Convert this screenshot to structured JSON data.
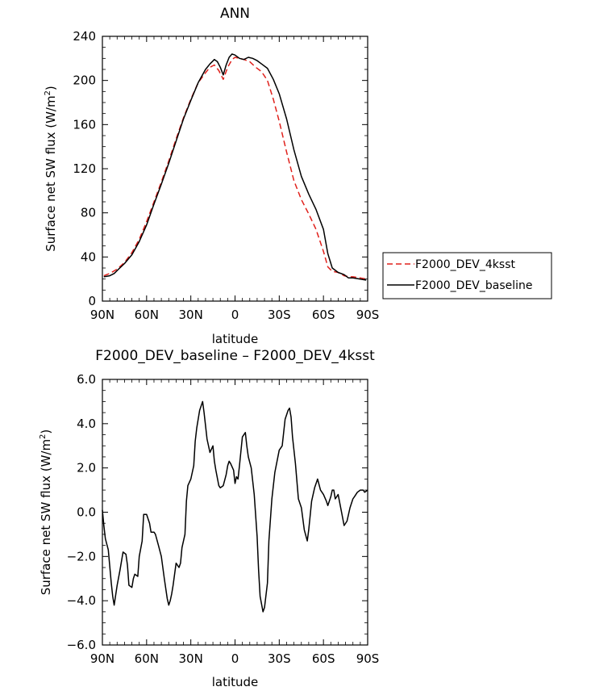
{
  "chart_data": [
    {
      "type": "line",
      "title": "ANN",
      "xlabel": "latitude",
      "ylabel": "Surface net SW flux (W/m",
      "ylabel_sup": "2",
      "ylabel_close": ")",
      "xlim": [
        90,
        -90
      ],
      "ylim": [
        0,
        240
      ],
      "x_ticks": [
        90,
        60,
        30,
        0,
        -30,
        -60,
        -90
      ],
      "x_tick_labels": [
        "90N",
        "60N",
        "30N",
        "0",
        "30S",
        "60S",
        "90S"
      ],
      "y_ticks": [
        0,
        40,
        80,
        120,
        160,
        200,
        240
      ],
      "y_tick_labels": [
        "0",
        "40",
        "80",
        "120",
        "160",
        "200",
        "240"
      ],
      "legend_position": "outside-right",
      "series": [
        {
          "name": "F2000_DEV_4ksst",
          "color": "#e0201b",
          "dash": "dashed",
          "x": [
            89,
            85,
            80,
            75,
            70,
            65,
            60,
            55,
            50,
            45,
            40,
            35,
            30,
            25,
            20,
            17,
            14,
            11,
            8,
            5,
            2,
            0,
            -3,
            -6,
            -10,
            -14,
            -18,
            -22,
            -26,
            -30,
            -35,
            -40,
            -45,
            -50,
            -55,
            -60,
            -63,
            -66,
            -70,
            -74,
            -78,
            -80,
            -85,
            -89
          ],
          "y": [
            23,
            25,
            29,
            35,
            44,
            56,
            72,
            90,
            108,
            127,
            147,
            166,
            183,
            198,
            207,
            212,
            214,
            209,
            201,
            212,
            219,
            221,
            220,
            219,
            217,
            212,
            208,
            200,
            183,
            163,
            135,
            109,
            92,
            79,
            65,
            45,
            31,
            27,
            26,
            23,
            22,
            22,
            21,
            20
          ]
        },
        {
          "name": "F2000_DEV_baseline",
          "color": "#000000",
          "dash": "solid",
          "x": [
            89,
            85,
            82,
            79,
            75,
            70,
            65,
            60,
            55,
            50,
            45,
            40,
            35,
            30,
            25,
            20,
            17,
            14,
            12,
            10,
            8,
            6,
            4,
            2,
            0,
            -3,
            -6,
            -9,
            -12,
            -15,
            -18,
            -22,
            -26,
            -30,
            -35,
            -40,
            -45,
            -50,
            -55,
            -60,
            -63,
            -66,
            -70,
            -74,
            -77,
            -80,
            -85,
            -89
          ],
          "y": [
            22,
            23,
            25,
            29,
            34,
            42,
            54,
            69,
            88,
            106,
            125,
            145,
            165,
            182,
            198,
            210,
            215,
            219,
            217,
            212,
            205,
            214,
            221,
            224,
            223,
            220,
            219,
            221,
            220,
            218,
            215,
            211,
            201,
            188,
            165,
            137,
            113,
            97,
            83,
            65,
            43,
            30,
            26,
            24,
            21,
            21,
            20,
            19
          ]
        }
      ]
    },
    {
      "type": "line",
      "title": "F2000_DEV_baseline – F2000_DEV_4ksst",
      "xlabel": "latitude",
      "ylabel": "Surface net SW flux (W/m",
      "ylabel_sup": "2",
      "ylabel_close": ")",
      "xlim": [
        90,
        -90
      ],
      "ylim": [
        -6,
        6
      ],
      "x_ticks": [
        90,
        60,
        30,
        0,
        -30,
        -60,
        -90
      ],
      "x_tick_labels": [
        "90N",
        "60N",
        "30N",
        "0",
        "30S",
        "60S",
        "90S"
      ],
      "y_ticks": [
        -6,
        -4,
        -2,
        0,
        2,
        4,
        6
      ],
      "y_tick_labels": [
        "−6.0",
        "−4.0",
        "−2.0",
        "0.0",
        "2.0",
        "4.0",
        "6.0"
      ],
      "series": [
        {
          "color": "#000000",
          "x": [
            90,
            89,
            88,
            86,
            84,
            83,
            82,
            80,
            78,
            76,
            74,
            73,
            72,
            70,
            69,
            68,
            66,
            65,
            63,
            62,
            60,
            58,
            57,
            55,
            54,
            52,
            50,
            48,
            46,
            45,
            44,
            43,
            42,
            40,
            38,
            37,
            36,
            34,
            33,
            32,
            30,
            28,
            27,
            26,
            24,
            22,
            21,
            19,
            17,
            15,
            14,
            13,
            11,
            10,
            8,
            6,
            5,
            4,
            3,
            1,
            0,
            -1,
            -2,
            -3,
            -5,
            -7,
            -8,
            -9,
            -11,
            -13,
            -15,
            -16,
            -17,
            -19,
            -20,
            -22,
            -23,
            -25,
            -27,
            -30,
            -32,
            -34,
            -36,
            -37,
            -38,
            -39,
            -41,
            -43,
            -45,
            -47,
            -49,
            -50,
            -52,
            -54,
            -56,
            -58,
            -60,
            -62,
            -63,
            -65,
            -66,
            -67,
            -68,
            -70,
            -72,
            -74,
            -76,
            -78,
            -80,
            -81,
            -83,
            -85,
            -87,
            -88,
            -90
          ],
          "y": [
            0.1,
            -0.6,
            -1.2,
            -1.7,
            -3.2,
            -3.8,
            -4.2,
            -3.3,
            -2.6,
            -1.8,
            -1.9,
            -2.4,
            -3.3,
            -3.4,
            -3.0,
            -2.8,
            -2.9,
            -2.0,
            -1.3,
            -0.1,
            -0.1,
            -0.5,
            -0.9,
            -0.9,
            -1.0,
            -1.5,
            -2.0,
            -3.0,
            -3.9,
            -4.2,
            -4.0,
            -3.7,
            -3.3,
            -2.3,
            -2.5,
            -2.3,
            -1.6,
            -1.0,
            0.5,
            1.2,
            1.5,
            2.1,
            3.2,
            3.8,
            4.6,
            5.0,
            4.5,
            3.3,
            2.7,
            3.0,
            2.3,
            1.9,
            1.2,
            1.1,
            1.2,
            1.7,
            2.1,
            2.3,
            2.2,
            1.9,
            1.3,
            1.6,
            1.5,
            2.1,
            3.4,
            3.6,
            3.0,
            2.5,
            2.0,
            0.8,
            -1.1,
            -2.6,
            -3.8,
            -4.5,
            -4.3,
            -3.2,
            -1.3,
            0.6,
            1.8,
            2.8,
            3.0,
            4.2,
            4.6,
            4.7,
            4.3,
            3.4,
            2.2,
            0.6,
            0.2,
            -0.8,
            -1.3,
            -0.8,
            0.5,
            1.1,
            1.5,
            1.0,
            0.8,
            0.5,
            0.3,
            0.7,
            1.0,
            1.0,
            0.6,
            0.8,
            0.1,
            -0.6,
            -0.4,
            0.2,
            0.6,
            0.7,
            0.9,
            1.0,
            1.0,
            0.9,
            1.0
          ]
        }
      ]
    }
  ]
}
